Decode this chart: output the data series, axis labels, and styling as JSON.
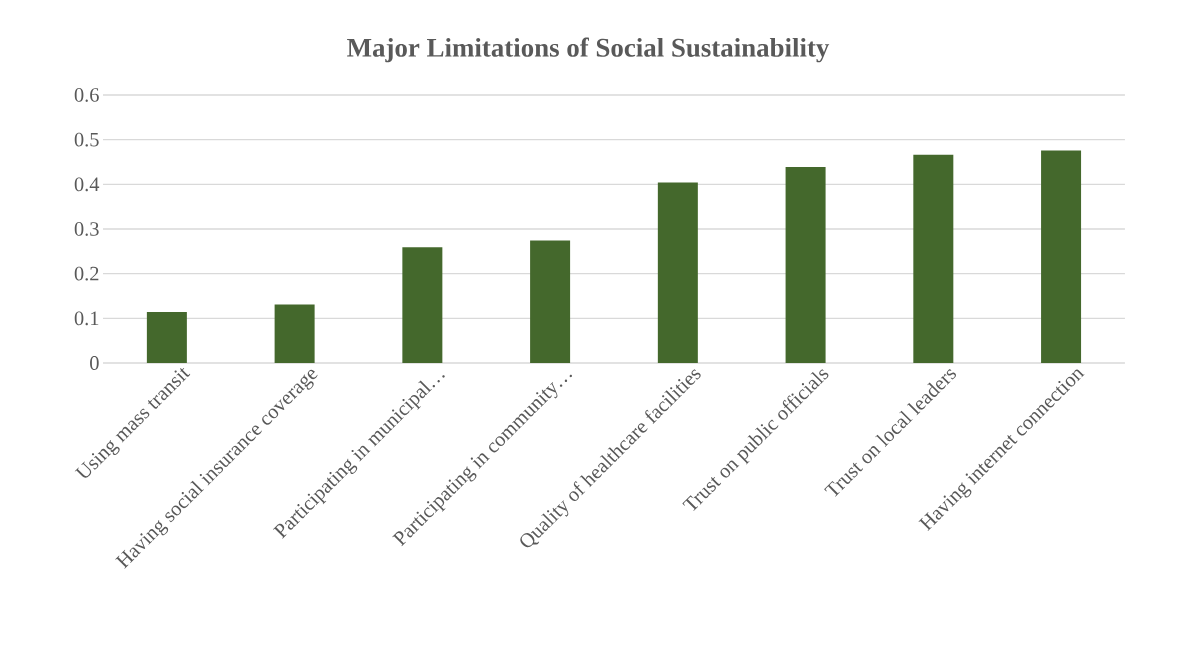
{
  "chart_data": {
    "type": "bar",
    "title": "Major Limitations of Social Sustainability",
    "categories": [
      "Using mass transit",
      "Having social insurance coverage",
      "Participating in municipal…",
      "Participating in community…",
      "Quality of healthcare facilities",
      "Trust on public officials",
      "Trust on local leaders",
      "Having internet connection"
    ],
    "values": [
      0.114,
      0.131,
      0.259,
      0.274,
      0.404,
      0.439,
      0.466,
      0.476
    ],
    "color": "#44682c",
    "ylim": [
      0,
      0.6
    ],
    "yticks": [
      0,
      0.1,
      0.2,
      0.3,
      0.4,
      0.5,
      0.6
    ],
    "grid": "y"
  }
}
